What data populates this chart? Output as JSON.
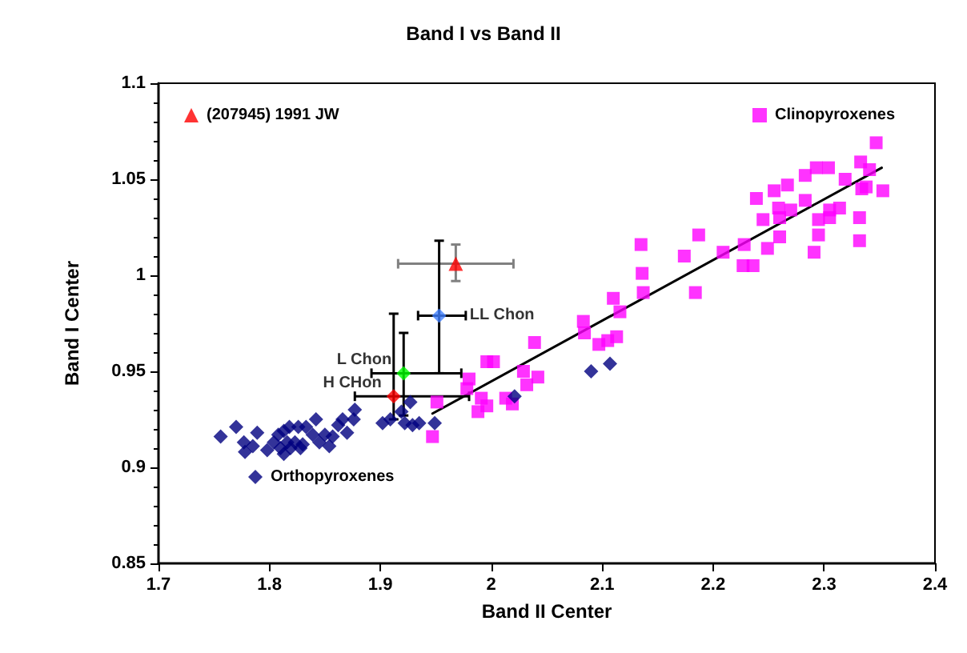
{
  "chart_data": {
    "type": "scatter",
    "title": "Band I vs Band II",
    "xlabel": "Band II Center",
    "ylabel": "Band I Center",
    "xlim": [
      1.7,
      2.4
    ],
    "xticks": [
      1.7,
      1.8,
      1.9,
      {
        "value": 2,
        "label": "2"
      },
      2.1,
      2.2,
      2.3,
      2.4
    ],
    "ylim": [
      0.85,
      1.1
    ],
    "yticks": [
      0.85,
      0.9,
      0.95,
      {
        "value": 1,
        "label": "1"
      },
      1.05,
      1.1
    ],
    "grid": false,
    "legend": "top left",
    "series": [
      {
        "name": "(207945) 1991 JW",
        "color": "#ff0000",
        "marker": "triangle",
        "x": [
          1.968
        ],
        "values": [
          1.006
        ],
        "xerrors": [
          [
            1.916,
            2.02
          ]
        ],
        "errors": [
          [
            0.997,
            1.016
          ]
        ]
      },
      {
        "name": "Clinopyroxenes",
        "color": "#ff00ff",
        "marker": "square",
        "x": [
          2.347,
          2.293,
          2.304,
          2.333,
          2.341,
          2.283,
          2.319,
          2.267,
          2.255,
          2.239,
          2.283,
          2.334,
          2.338,
          2.353,
          2.259,
          2.27,
          2.245,
          2.26,
          2.305,
          2.314,
          2.295,
          2.305,
          2.332,
          2.295,
          2.26,
          2.187,
          2.228,
          2.249,
          2.209,
          2.174,
          2.291,
          2.332,
          2.227,
          2.236,
          2.135,
          2.136,
          2.137,
          2.184,
          2.11,
          2.116,
          2.083,
          2.084,
          2.097,
          2.105,
          2.113,
          2.039,
          1.996,
          2.002,
          2.029,
          2.042,
          2.032,
          1.98,
          1.978,
          1.991,
          1.996,
          1.988,
          2.013,
          2.019,
          1.951,
          1.947
        ],
        "values": [
          1.069,
          1.056,
          1.056,
          1.059,
          1.055,
          1.052,
          1.05,
          1.047,
          1.044,
          1.04,
          1.039,
          1.045,
          1.046,
          1.044,
          1.035,
          1.034,
          1.029,
          1.03,
          1.034,
          1.035,
          1.029,
          1.03,
          1.03,
          1.021,
          1.02,
          1.021,
          1.016,
          1.014,
          1.012,
          1.01,
          1.012,
          1.018,
          1.005,
          1.005,
          1.016,
          1.001,
          0.991,
          0.991,
          0.988,
          0.981,
          0.976,
          0.97,
          0.964,
          0.966,
          0.968,
          0.965,
          0.955,
          0.955,
          0.95,
          0.947,
          0.943,
          0.946,
          0.941,
          0.936,
          0.932,
          0.929,
          0.936,
          0.933,
          0.934,
          0.916
        ]
      },
      {
        "name": "Orthopyroxenes",
        "color": "#000080",
        "marker": "diamond",
        "x": [
          1.756,
          1.77,
          1.777,
          1.785,
          1.789,
          1.778,
          1.798,
          1.804,
          1.808,
          1.813,
          1.818,
          1.826,
          1.833,
          1.81,
          1.816,
          1.823,
          1.83,
          1.813,
          1.819,
          1.828,
          1.842,
          1.839,
          1.845,
          1.85,
          1.854,
          1.857,
          1.862,
          1.866,
          1.87,
          1.877,
          1.876,
          1.902,
          1.909,
          1.919,
          1.927,
          1.922,
          1.929,
          1.935,
          1.949,
          2.021,
          2.09,
          2.107
        ],
        "values": [
          0.916,
          0.921,
          0.913,
          0.911,
          0.918,
          0.908,
          0.909,
          0.913,
          0.917,
          0.919,
          0.921,
          0.921,
          0.921,
          0.91,
          0.913,
          0.913,
          0.912,
          0.907,
          0.91,
          0.91,
          0.925,
          0.917,
          0.913,
          0.917,
          0.911,
          0.916,
          0.922,
          0.925,
          0.918,
          0.93,
          0.925,
          0.923,
          0.925,
          0.929,
          0.934,
          0.923,
          0.922,
          0.923,
          0.923,
          0.937,
          0.95,
          0.954
        ]
      },
      {
        "name": "LL Chon",
        "color": "#4080ff",
        "marker": "diamond",
        "x": [
          1.953
        ],
        "values": [
          0.979
        ],
        "xerrors": [
          [
            1.934,
            1.977
          ]
        ],
        "errors": [
          [
            0.949,
            1.018
          ]
        ]
      },
      {
        "name": "L Chon",
        "color": "#00ff00",
        "marker": "diamond",
        "x": [
          1.921
        ],
        "values": [
          0.949
        ],
        "xerrors": [
          [
            1.892,
            1.973
          ]
        ],
        "errors": [
          [
            0.927,
            0.97
          ]
        ]
      },
      {
        "name": "H CHon",
        "color": "#ff0000",
        "marker": "diamond",
        "x": [
          1.912
        ],
        "values": [
          0.937
        ],
        "xerrors": [
          [
            1.877,
            1.98
          ]
        ],
        "errors": [
          [
            0.925,
            0.98
          ]
        ]
      },
      {
        "type": "line",
        "color": "#000000",
        "marker": "none",
        "x": [
          1.947,
          2.352
        ],
        "values": [
          0.928,
          1.056
        ]
      }
    ]
  }
}
